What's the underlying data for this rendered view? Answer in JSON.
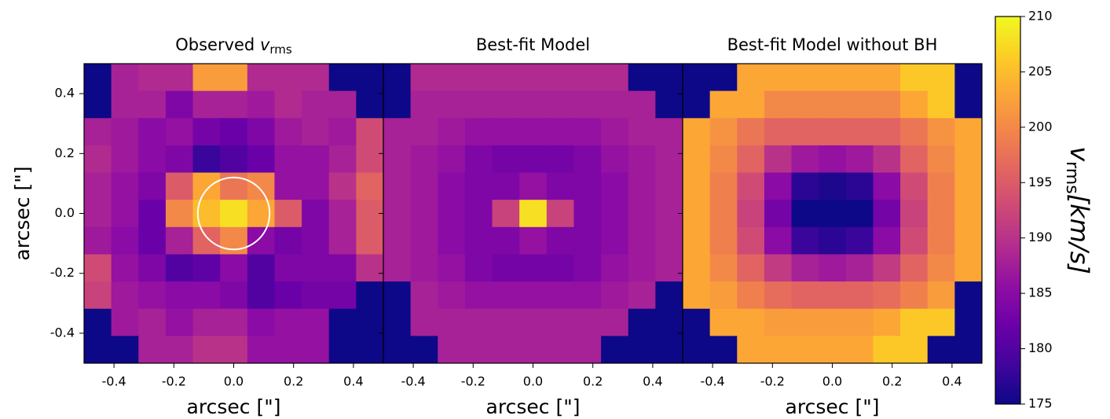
{
  "chart_data": [
    {
      "type": "heatmap",
      "title": "Observed",
      "title_symbol": "v",
      "title_subscript": "rms",
      "xlabel": "arcsec [\"]",
      "ylabel": "arcsec [\"]",
      "xlim": [
        -0.5,
        0.5
      ],
      "ylim": [
        -0.5,
        0.5
      ],
      "xticks": [
        -0.4,
        -0.2,
        {
          "value": 0,
          "label": "0.0"
        },
        0.2,
        0.4
      ],
      "yticks": [
        -0.4,
        -0.2,
        {
          "value": 0,
          "label": "0.0"
        },
        0.2,
        0.4
      ],
      "circle": {
        "x": 0,
        "y": 0,
        "r": 0.12
      },
      "values": [
        [
          175,
          188,
          189,
          189,
          202,
          202,
          189,
          189,
          189,
          175,
          175
        ],
        [
          175,
          188,
          188,
          184,
          188,
          188,
          187,
          189,
          188,
          188,
          175
        ],
        [
          188,
          187,
          185,
          186,
          183,
          182,
          184,
          187,
          188,
          187,
          193
        ],
        [
          189,
          187,
          185,
          184,
          178,
          180,
          182,
          186,
          186,
          188,
          193
        ],
        [
          188,
          186,
          184,
          195,
          203,
          198,
          200,
          186,
          186,
          190,
          196
        ],
        [
          188,
          186,
          182,
          200,
          205,
          208,
          203,
          195,
          184,
          188,
          195
        ],
        [
          187,
          185,
          182,
          188,
          196,
          200,
          185,
          183,
          184,
          188,
          195
        ],
        [
          193,
          186,
          184,
          180,
          181,
          185,
          180,
          184,
          184,
          184,
          190
        ],
        [
          192,
          187,
          186,
          185,
          185,
          184,
          180,
          182,
          183,
          183,
          175
        ],
        [
          175,
          187,
          188,
          186,
          188,
          188,
          185,
          186,
          186,
          175,
          175
        ],
        [
          175,
          175,
          188,
          188,
          190,
          190,
          186,
          186,
          186,
          175,
          175
        ]
      ]
    },
    {
      "type": "heatmap",
      "title": "Best-fit Model",
      "xlabel": "arcsec [\"]",
      "xlim": [
        -0.5,
        0.5
      ],
      "ylim": [
        -0.5,
        0.5
      ],
      "xticks": [
        -0.4,
        -0.2,
        {
          "value": 0,
          "label": "0.0"
        },
        0.2,
        0.4
      ],
      "values": [
        [
          175,
          189,
          189,
          189,
          189,
          189,
          189,
          189,
          189,
          175,
          175
        ],
        [
          175,
          188,
          188,
          188,
          188,
          188,
          188,
          188,
          188,
          188,
          175
        ],
        [
          188,
          188,
          187,
          186,
          186,
          186,
          186,
          186,
          187,
          188,
          188
        ],
        [
          188,
          187,
          186,
          184,
          183,
          183,
          183,
          184,
          186,
          187,
          188
        ],
        [
          188,
          187,
          185,
          184,
          184,
          186,
          184,
          184,
          185,
          187,
          188
        ],
        [
          188,
          187,
          185,
          184,
          192,
          208,
          192,
          184,
          185,
          187,
          188
        ],
        [
          188,
          187,
          185,
          184,
          184,
          186,
          184,
          184,
          185,
          187,
          188
        ],
        [
          188,
          187,
          186,
          184,
          183,
          183,
          183,
          184,
          186,
          187,
          188
        ],
        [
          175,
          188,
          187,
          186,
          186,
          186,
          186,
          186,
          187,
          188,
          175
        ],
        [
          175,
          188,
          188,
          188,
          188,
          188,
          188,
          188,
          188,
          175,
          175
        ],
        [
          175,
          175,
          188,
          188,
          188,
          188,
          188,
          188,
          175,
          175,
          175
        ]
      ]
    },
    {
      "type": "heatmap",
      "title": "Best-fit Model without BH",
      "xlabel": "arcsec [\"]",
      "xlim": [
        -0.5,
        0.5
      ],
      "ylim": [
        -0.5,
        0.5
      ],
      "xticks": [
        -0.4,
        -0.2,
        {
          "value": 0,
          "label": "0.0"
        },
        0.2,
        0.4
      ],
      "values": [
        [
          175,
          175,
          203,
          203,
          203,
          203,
          203,
          203,
          206,
          206,
          175
        ],
        [
          175,
          203,
          203,
          200,
          200,
          200,
          200,
          200,
          203,
          206,
          175
        ],
        [
          203,
          201,
          198,
          196,
          196,
          196,
          196,
          196,
          198,
          201,
          203
        ],
        [
          203,
          200,
          196,
          190,
          187,
          186,
          187,
          190,
          196,
          200,
          203
        ],
        [
          203,
          199,
          193,
          185,
          177,
          176,
          177,
          185,
          193,
          199,
          203
        ],
        [
          203,
          199,
          192,
          183,
          175,
          175,
          175,
          183,
          192,
          199,
          203
        ],
        [
          203,
          199,
          193,
          185,
          178,
          177,
          178,
          185,
          193,
          199,
          203
        ],
        [
          203,
          200,
          196,
          191,
          188,
          187,
          188,
          191,
          196,
          200,
          203
        ],
        [
          203,
          202,
          199,
          197,
          196,
          196,
          196,
          197,
          199,
          202,
          175
        ],
        [
          175,
          203,
          203,
          202,
          202,
          202,
          202,
          203,
          206,
          206,
          175
        ],
        [
          175,
          175,
          203,
          203,
          203,
          203,
          203,
          206,
          206,
          175,
          175
        ]
      ]
    },
    {
      "type": "colorbar",
      "cmap": "plasma",
      "label": "v",
      "label_subscript": "rms",
      "label_unit": "[km/s]",
      "ylim": [
        175,
        210
      ],
      "yticks": [
        175,
        180,
        185,
        190,
        195,
        200,
        205,
        210
      ]
    }
  ]
}
